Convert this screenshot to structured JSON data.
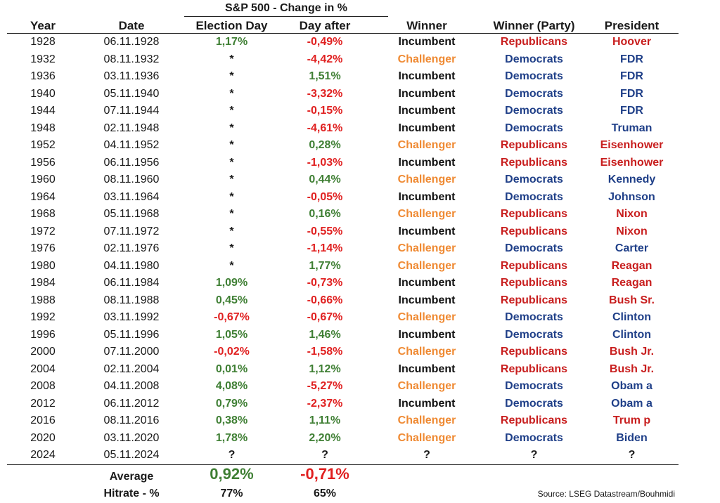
{
  "group_header": "S&P 500 - Change in %",
  "columns": {
    "year": "Year",
    "date": "Date",
    "election_day": "Election Day",
    "day_after": "Day after",
    "winner": "Winner",
    "winner_party": "Winner (Party)",
    "president": "President"
  },
  "rows": [
    {
      "year": "1928",
      "date": "06.11.1928",
      "election_day": "1,17%",
      "day_after": "-0,49%",
      "winner": "Incumbent",
      "party": "Republicans",
      "president": "Hoover"
    },
    {
      "year": "1932",
      "date": "08.11.1932",
      "election_day": "*",
      "day_after": "-4,42%",
      "winner": "Challenger",
      "party": "Democrats",
      "president": "FDR"
    },
    {
      "year": "1936",
      "date": "03.11.1936",
      "election_day": "*",
      "day_after": "1,51%",
      "winner": "Incumbent",
      "party": "Democrats",
      "president": "FDR"
    },
    {
      "year": "1940",
      "date": "05.11.1940",
      "election_day": "*",
      "day_after": "-3,32%",
      "winner": "Incumbent",
      "party": "Democrats",
      "president": "FDR"
    },
    {
      "year": "1944",
      "date": "07.11.1944",
      "election_day": "*",
      "day_after": "-0,15%",
      "winner": "Incumbent",
      "party": "Democrats",
      "president": "FDR"
    },
    {
      "year": "1948",
      "date": "02.11.1948",
      "election_day": "*",
      "day_after": "-4,61%",
      "winner": "Incumbent",
      "party": "Democrats",
      "president": "Truman"
    },
    {
      "year": "1952",
      "date": "04.11.1952",
      "election_day": "*",
      "day_after": "0,28%",
      "winner": "Challenger",
      "party": "Republicans",
      "president": "Eisenhower"
    },
    {
      "year": "1956",
      "date": "06.11.1956",
      "election_day": "*",
      "day_after": "-1,03%",
      "winner": "Incumbent",
      "party": "Republicans",
      "president": "Eisenhower"
    },
    {
      "year": "1960",
      "date": "08.11.1960",
      "election_day": "*",
      "day_after": "0,44%",
      "winner": "Challenger",
      "party": "Democrats",
      "president": "Kennedy"
    },
    {
      "year": "1964",
      "date": "03.11.1964",
      "election_day": "*",
      "day_after": "-0,05%",
      "winner": "Incumbent",
      "party": "Democrats",
      "president": "Johnson"
    },
    {
      "year": "1968",
      "date": "05.11.1968",
      "election_day": "*",
      "day_after": "0,16%",
      "winner": "Challenger",
      "party": "Republicans",
      "president": "Nixon"
    },
    {
      "year": "1972",
      "date": "07.11.1972",
      "election_day": "*",
      "day_after": "-0,55%",
      "winner": "Incumbent",
      "party": "Republicans",
      "president": "Nixon"
    },
    {
      "year": "1976",
      "date": "02.11.1976",
      "election_day": "*",
      "day_after": "-1,14%",
      "winner": "Challenger",
      "party": "Democrats",
      "president": "Carter"
    },
    {
      "year": "1980",
      "date": "04.11.1980",
      "election_day": "*",
      "day_after": "1,77%",
      "winner": "Challenger",
      "party": "Republicans",
      "president": "Reagan"
    },
    {
      "year": "1984",
      "date": "06.11.1984",
      "election_day": "1,09%",
      "day_after": "-0,73%",
      "winner": "Incumbent",
      "party": "Republicans",
      "president": "Reagan"
    },
    {
      "year": "1988",
      "date": "08.11.1988",
      "election_day": "0,45%",
      "day_after": "-0,66%",
      "winner": "Incumbent",
      "party": "Republicans",
      "president": "Bush Sr."
    },
    {
      "year": "1992",
      "date": "03.11.1992",
      "election_day": "-0,67%",
      "day_after": "-0,67%",
      "winner": "Challenger",
      "party": "Democrats",
      "president": "Clinton"
    },
    {
      "year": "1996",
      "date": "05.11.1996",
      "election_day": "1,05%",
      "day_after": "1,46%",
      "winner": "Incumbent",
      "party": "Democrats",
      "president": "Clinton"
    },
    {
      "year": "2000",
      "date": "07.11.2000",
      "election_day": "-0,02%",
      "day_after": "-1,58%",
      "winner": "Challenger",
      "party": "Republicans",
      "president": "Bush Jr."
    },
    {
      "year": "2004",
      "date": "02.11.2004",
      "election_day": "0,01%",
      "day_after": "1,12%",
      "winner": "Incumbent",
      "party": "Republicans",
      "president": "Bush Jr."
    },
    {
      "year": "2008",
      "date": "04.11.2008",
      "election_day": "4,08%",
      "day_after": "-5,27%",
      "winner": "Challenger",
      "party": "Democrats",
      "president": "Obam a"
    },
    {
      "year": "2012",
      "date": "06.11.2012",
      "election_day": "0,79%",
      "day_after": "-2,37%",
      "winner": "Incumbent",
      "party": "Democrats",
      "president": "Obam a"
    },
    {
      "year": "2016",
      "date": "08.11.2016",
      "election_day": "0,38%",
      "day_after": "1,11%",
      "winner": "Challenger",
      "party": "Republicans",
      "president": "Trum p"
    },
    {
      "year": "2020",
      "date": "03.11.2020",
      "election_day": "1,78%",
      "day_after": "2,20%",
      "winner": "Challenger",
      "party": "Democrats",
      "president": "Biden"
    },
    {
      "year": "2024",
      "date": "05.11.2024",
      "election_day": "?",
      "day_after": "?",
      "winner": "?",
      "party": "?",
      "president": "?"
    }
  ],
  "summary": {
    "average_label": "Average",
    "average_election_day": "0,92%",
    "average_day_after": "-0,71%",
    "hitrate_label": "Hitrate - %",
    "hitrate_election_day": "77%",
    "hitrate_day_after": "65%"
  },
  "source": "Source: LSEG Datastream/Bouhmidi",
  "colors": {
    "positive": "#3f7f34",
    "negative": "#e02020",
    "incumbent": "#111111",
    "challenger": "#ef8a33",
    "republicans": "#c81e1e",
    "democrats": "#1f3f88"
  }
}
